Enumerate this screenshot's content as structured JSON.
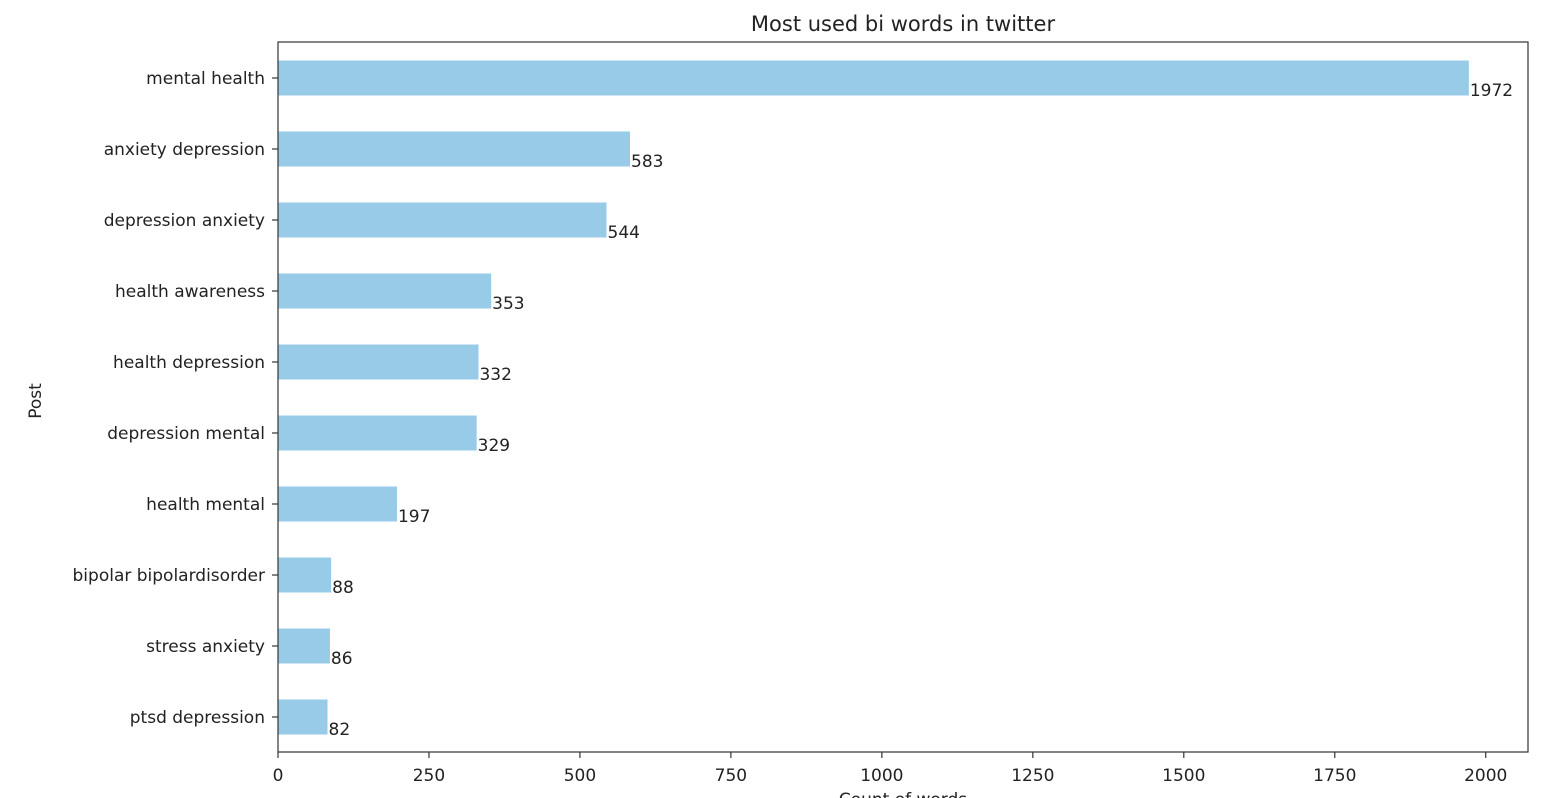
{
  "chart_data": {
    "type": "bar",
    "orientation": "horizontal",
    "title": "Most used bi words in twitter",
    "xlabel": "Count of words",
    "ylabel": "Post",
    "categories": [
      "mental health",
      "anxiety depression",
      "depression anxiety",
      "health awareness",
      "health depression",
      "depression mental",
      "health mental",
      "bipolar bipolardisorder",
      "stress anxiety",
      "ptsd depression"
    ],
    "values": [
      1972,
      583,
      544,
      353,
      332,
      329,
      197,
      88,
      86,
      82
    ],
    "data_labels": [
      "1972",
      "583",
      "544",
      "353",
      "332",
      "329",
      "197",
      "88",
      "86",
      "82"
    ],
    "xlim": [
      0,
      2070
    ],
    "x_ticks": [
      0,
      250,
      500,
      750,
      1000,
      1250,
      1500,
      1750,
      2000
    ],
    "x_tick_labels": [
      "0",
      "250",
      "500",
      "750",
      "1000",
      "1250",
      "1500",
      "1750",
      "2000"
    ],
    "grid": false,
    "legend": "none",
    "bar_color": "#97cbe8",
    "text_color": "#222222",
    "axis_color": "#333333"
  }
}
